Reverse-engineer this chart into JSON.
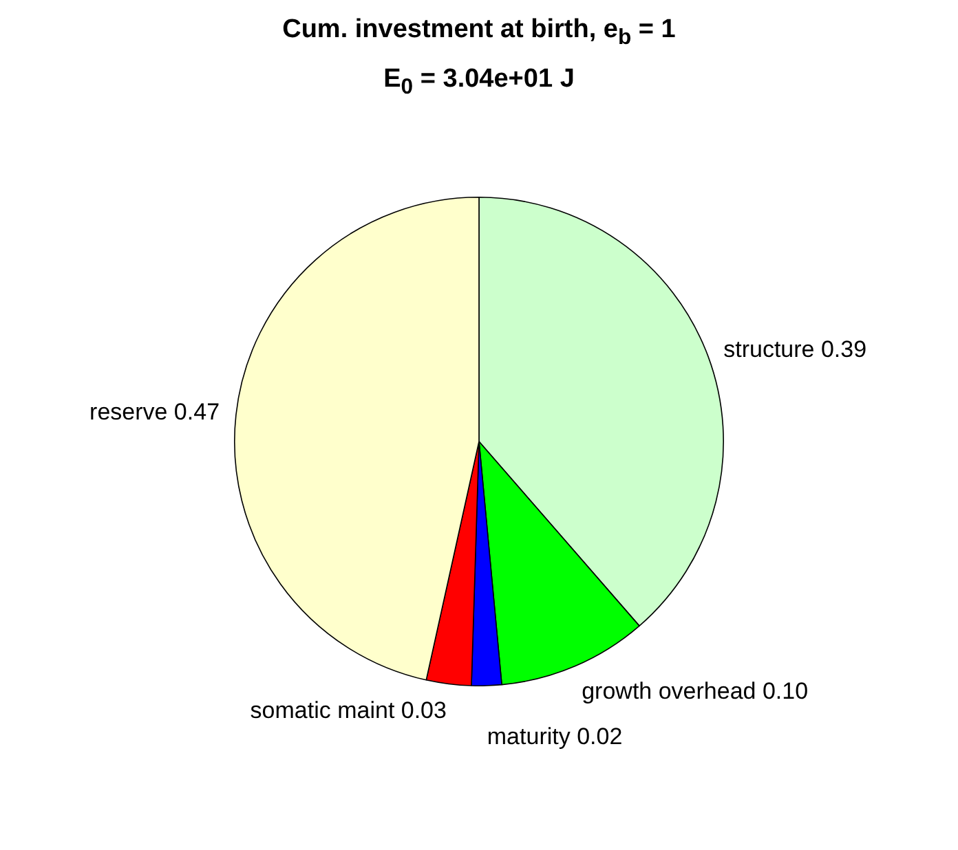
{
  "chart_data": {
    "type": "pie",
    "title": "Cum. investment at birth, e$_{b}$ = 1",
    "subtitle": "E$_{0}$ = 3.04e+01 J",
    "categories": [
      "structure",
      "growth overhead",
      "maturity",
      "somatic maint",
      "reserve"
    ],
    "values": [
      0.39,
      0.1,
      0.02,
      0.03,
      0.47
    ],
    "value_labels": [
      "0.39",
      "0.10",
      "0.02",
      "0.03",
      "0.47"
    ],
    "colors": [
      "#ccffcc",
      "#00ff00",
      "#0000ff",
      "#ff0000",
      "#ffffcc"
    ],
    "legend": false
  }
}
